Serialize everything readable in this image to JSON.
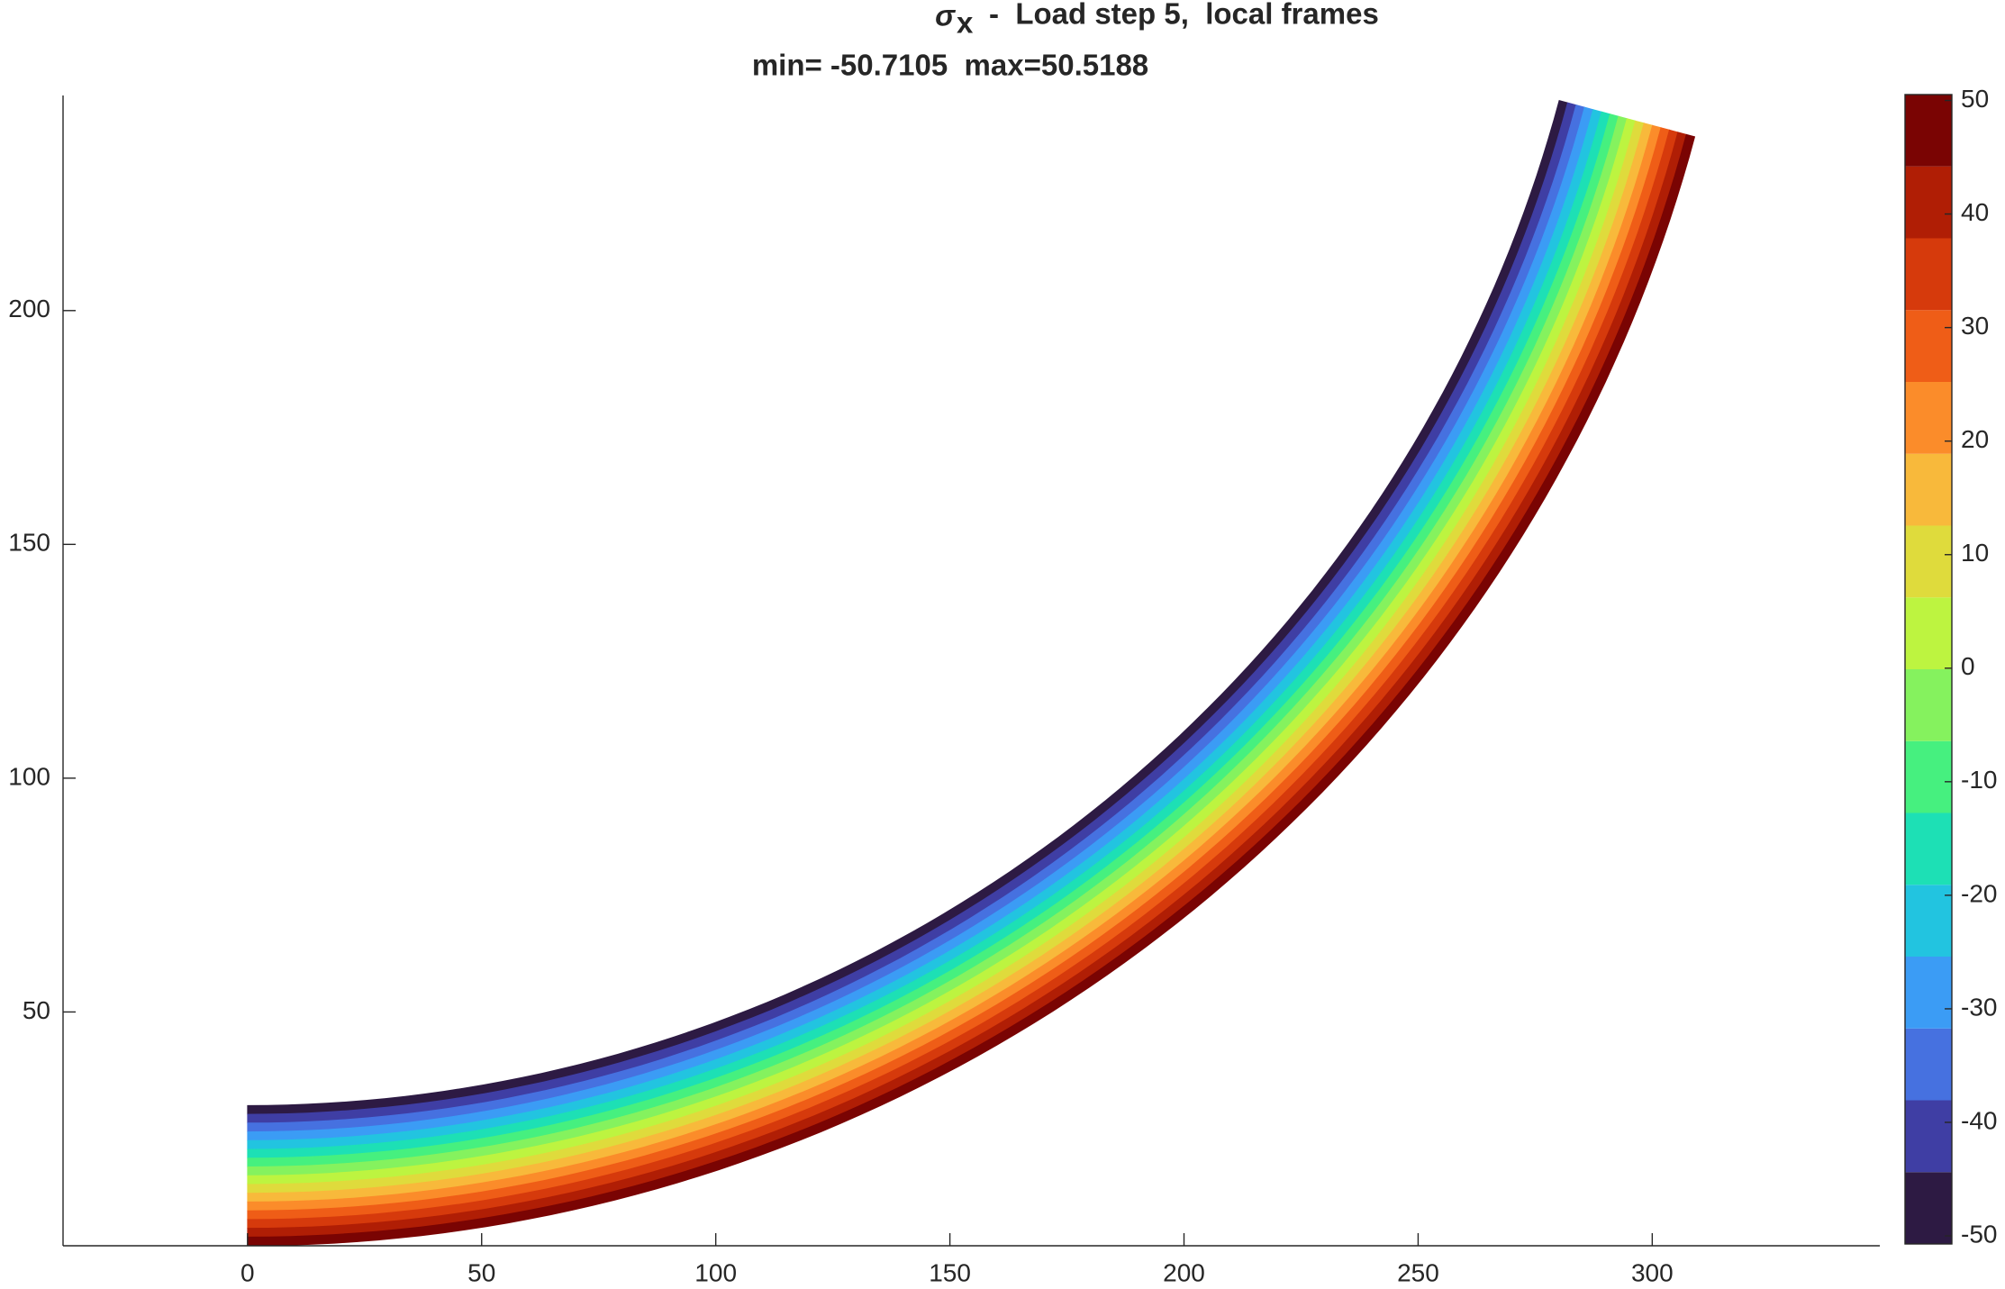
{
  "chart_data": {
    "type": "contour",
    "title_symbol": "σ",
    "title_subscript": "x",
    "title": "-  Load step 5,  local frames",
    "subtitle": "min= -50.7105  max=50.5188",
    "xlim": [
      -39.4,
      348.6
    ],
    "ylim": [
      0,
      246
    ],
    "xticks": [
      0,
      50,
      100,
      150,
      200,
      250,
      300
    ],
    "yticks": [
      50,
      100,
      150,
      200
    ],
    "levels": [
      -50.7105,
      -44.3837,
      -38.0568,
      -31.73,
      -25.4032,
      -19.0763,
      -12.7495,
      -6.4227,
      -0.0958,
      6.231,
      12.5578,
      18.8847,
      25.2115,
      31.5383,
      37.8652,
      44.192,
      50.5188
    ],
    "colors": [
      "#2d1a43",
      "#3f3ea4",
      "#4671e0",
      "#3b9cf5",
      "#22c4e0",
      "#1de0b5",
      "#46f07f",
      "#85f25e",
      "#bdf440",
      "#dfdb3c",
      "#f8b93b",
      "#fb8c2a",
      "#ef5d17",
      "#d63a0c",
      "#b01e05",
      "#7a0403"
    ],
    "colorbar_ticks": [
      -50,
      -40,
      -30,
      -20,
      -10,
      0,
      10,
      20,
      30,
      40,
      50
    ]
  }
}
